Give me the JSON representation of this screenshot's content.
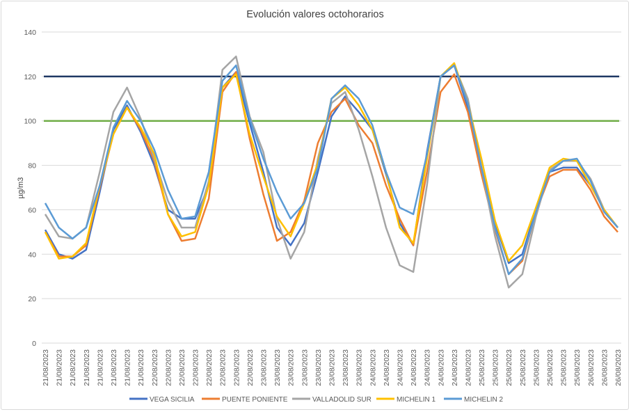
{
  "chart_data": {
    "type": "line",
    "title": "Evolución valores octohorarios",
    "xlabel": "",
    "ylabel": "µg/m3",
    "ylim": [
      0,
      140
    ],
    "yticks": [
      0,
      20,
      40,
      60,
      80,
      100,
      120,
      140
    ],
    "grid": true,
    "legend_position": "bottom",
    "categories": [
      "21/08/2023",
      "21/08/2023",
      "21/08/2023",
      "21/08/2023",
      "21/08/2023",
      "21/08/2023",
      "21/08/2023",
      "21/08/2023",
      "22/08/2023",
      "22/08/2023",
      "22/08/2023",
      "22/08/2023",
      "22/08/2023",
      "22/08/2023",
      "22/08/2023",
      "22/08/2023",
      "23/08/2023",
      "23/08/2023",
      "23/08/2023",
      "23/08/2023",
      "23/08/2023",
      "23/08/2023",
      "23/08/2023",
      "23/08/2023",
      "24/08/2023",
      "24/08/2023",
      "24/08/2023",
      "24/08/2023",
      "24/08/2023",
      "24/08/2023",
      "24/08/2023",
      "24/08/2023",
      "25/08/2023",
      "25/08/2023",
      "25/08/2023",
      "25/08/2023",
      "25/08/2023",
      "25/08/2023",
      "25/08/2023",
      "25/08/2023",
      "26/08/2023",
      "26/08/2023",
      "26/08/2023"
    ],
    "reference_lines": [
      {
        "value": 120,
        "color": "#1f3864"
      },
      {
        "value": 100,
        "color": "#70ad47"
      }
    ],
    "series": [
      {
        "name": "VEGA SICILIA",
        "color": "#4472c4",
        "values": [
          51,
          40,
          38,
          42,
          68,
          96,
          107,
          95,
          80,
          60,
          56,
          56,
          71,
          115,
          122,
          99,
          77,
          52,
          44,
          54,
          77,
          102,
          111,
          104,
          96,
          76,
          54,
          44,
          86,
          120,
          125,
          106,
          79,
          54,
          36,
          40,
          60,
          77,
          79,
          79,
          71,
          60,
          52
        ]
      },
      {
        "name": "PUENTE PONIENTE",
        "color": "#ed7d31",
        "values": [
          50,
          39,
          39,
          44,
          70,
          94,
          106,
          96,
          82,
          58,
          46,
          47,
          65,
          113,
          122,
          92,
          67,
          46,
          50,
          64,
          90,
          104,
          110,
          98,
          90,
          71,
          56,
          44,
          77,
          113,
          121,
          104,
          76,
          51,
          31,
          37,
          59,
          75,
          78,
          78,
          69,
          57,
          50
        ]
      },
      {
        "name": "VALLADOLID SUR",
        "color": "#a5a5a5",
        "values": [
          58,
          48,
          47,
          52,
          77,
          104,
          115,
          101,
          83,
          64,
          52,
          52,
          73,
          123,
          129,
          102,
          86,
          56,
          38,
          50,
          83,
          108,
          113,
          96,
          75,
          52,
          35,
          32,
          71,
          120,
          125,
          110,
          79,
          48,
          25,
          31,
          57,
          78,
          82,
          82,
          74,
          60,
          52
        ]
      },
      {
        "name": "MICHELIN 1",
        "color": "#ffc000",
        "values": [
          50,
          38,
          39,
          45,
          71,
          94,
          106,
          97,
          85,
          58,
          48,
          50,
          71,
          115,
          121,
          94,
          75,
          57,
          48,
          63,
          81,
          110,
          115,
          107,
          96,
          77,
          52,
          45,
          83,
          120,
          126,
          108,
          83,
          55,
          37,
          44,
          61,
          79,
          83,
          82,
          71,
          60,
          52
        ]
      },
      {
        "name": "MICHELIN 2",
        "color": "#5b9bd5",
        "values": [
          63,
          52,
          47,
          52,
          71,
          97,
          109,
          100,
          87,
          69,
          56,
          57,
          77,
          118,
          125,
          101,
          83,
          68,
          56,
          63,
          79,
          110,
          116,
          110,
          98,
          77,
          61,
          58,
          85,
          120,
          125,
          108,
          79,
          52,
          31,
          38,
          59,
          77,
          82,
          83,
          73,
          59,
          52
        ]
      }
    ]
  }
}
